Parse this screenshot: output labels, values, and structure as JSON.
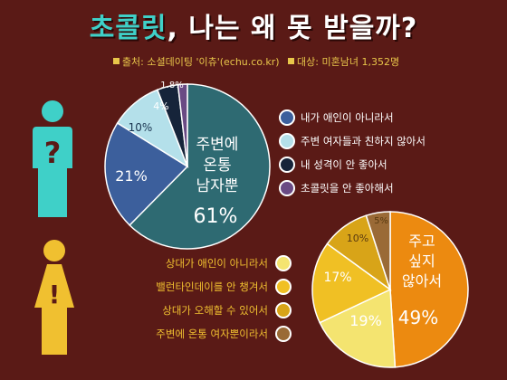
{
  "header": {
    "title_main": "초콜릿",
    "title_rest": ", 나는 왜 못 받을까?",
    "source": "출처: 소셜데이팅 '이츄'(echu.co.kr)",
    "target": "대상: 미혼남녀 1,352명"
  },
  "colors": {
    "background": "#5a1a16",
    "male_icon": "#3fd0c8",
    "female_icon": "#f0c030"
  },
  "icons": {
    "male": "male-question-icon",
    "female": "female-exclamation-icon"
  },
  "chart_data": [
    {
      "type": "pie",
      "group": "male",
      "categories": [
        "주변에 온통 남자뿐",
        "내가 애인이 아니라서",
        "주변 여자들과 친하지 않아서",
        "내 성격이 안 좋아서",
        "초콜릿을 안 좋아해서"
      ],
      "values": [
        61,
        21,
        10,
        4,
        1.8
      ],
      "slice_labels": [
        "61%",
        "21%",
        "10%",
        "4%",
        "1.8%"
      ],
      "center_label": [
        "주변에",
        "온통",
        "남자뿐"
      ],
      "colors": [
        "#2e6a72",
        "#3c5f9c",
        "#b4e0ea",
        "#16243a",
        "#6a4a84"
      ],
      "legend": [
        "내가 애인이 아니라서",
        "주변 여자들과 친하지 않아서",
        "내 성격이 안 좋아서",
        "초콜릿을 안 좋아해서"
      ],
      "legend_colors": [
        "#3c5f9c",
        "#b4e0ea",
        "#16243a",
        "#6a4a84"
      ]
    },
    {
      "type": "pie",
      "group": "female",
      "categories": [
        "주고 싶지 않아서",
        "상대가 애인이 아니라서",
        "밸런타인데이를 안 챙겨서",
        "상대가 오해할 수 있어서",
        "주변에 온통 여자뿐이라서"
      ],
      "values": [
        49,
        19,
        17,
        10,
        5
      ],
      "slice_labels": [
        "49%",
        "19%",
        "17%",
        "10%",
        "5%"
      ],
      "center_label": [
        "주고",
        "싶지",
        "않아서"
      ],
      "colors": [
        "#ec8a10",
        "#f4e470",
        "#f0c024",
        "#d8a418",
        "#9a6a36"
      ],
      "legend": [
        "상대가 애인이 아니라서",
        "밸런타인데이를 안 챙겨서",
        "상대가 오해할 수 있어서",
        "주변에 온통 여자뿐이라서"
      ],
      "legend_colors": [
        "#f4e470",
        "#f0c024",
        "#d8a418",
        "#9a6a36"
      ]
    }
  ]
}
